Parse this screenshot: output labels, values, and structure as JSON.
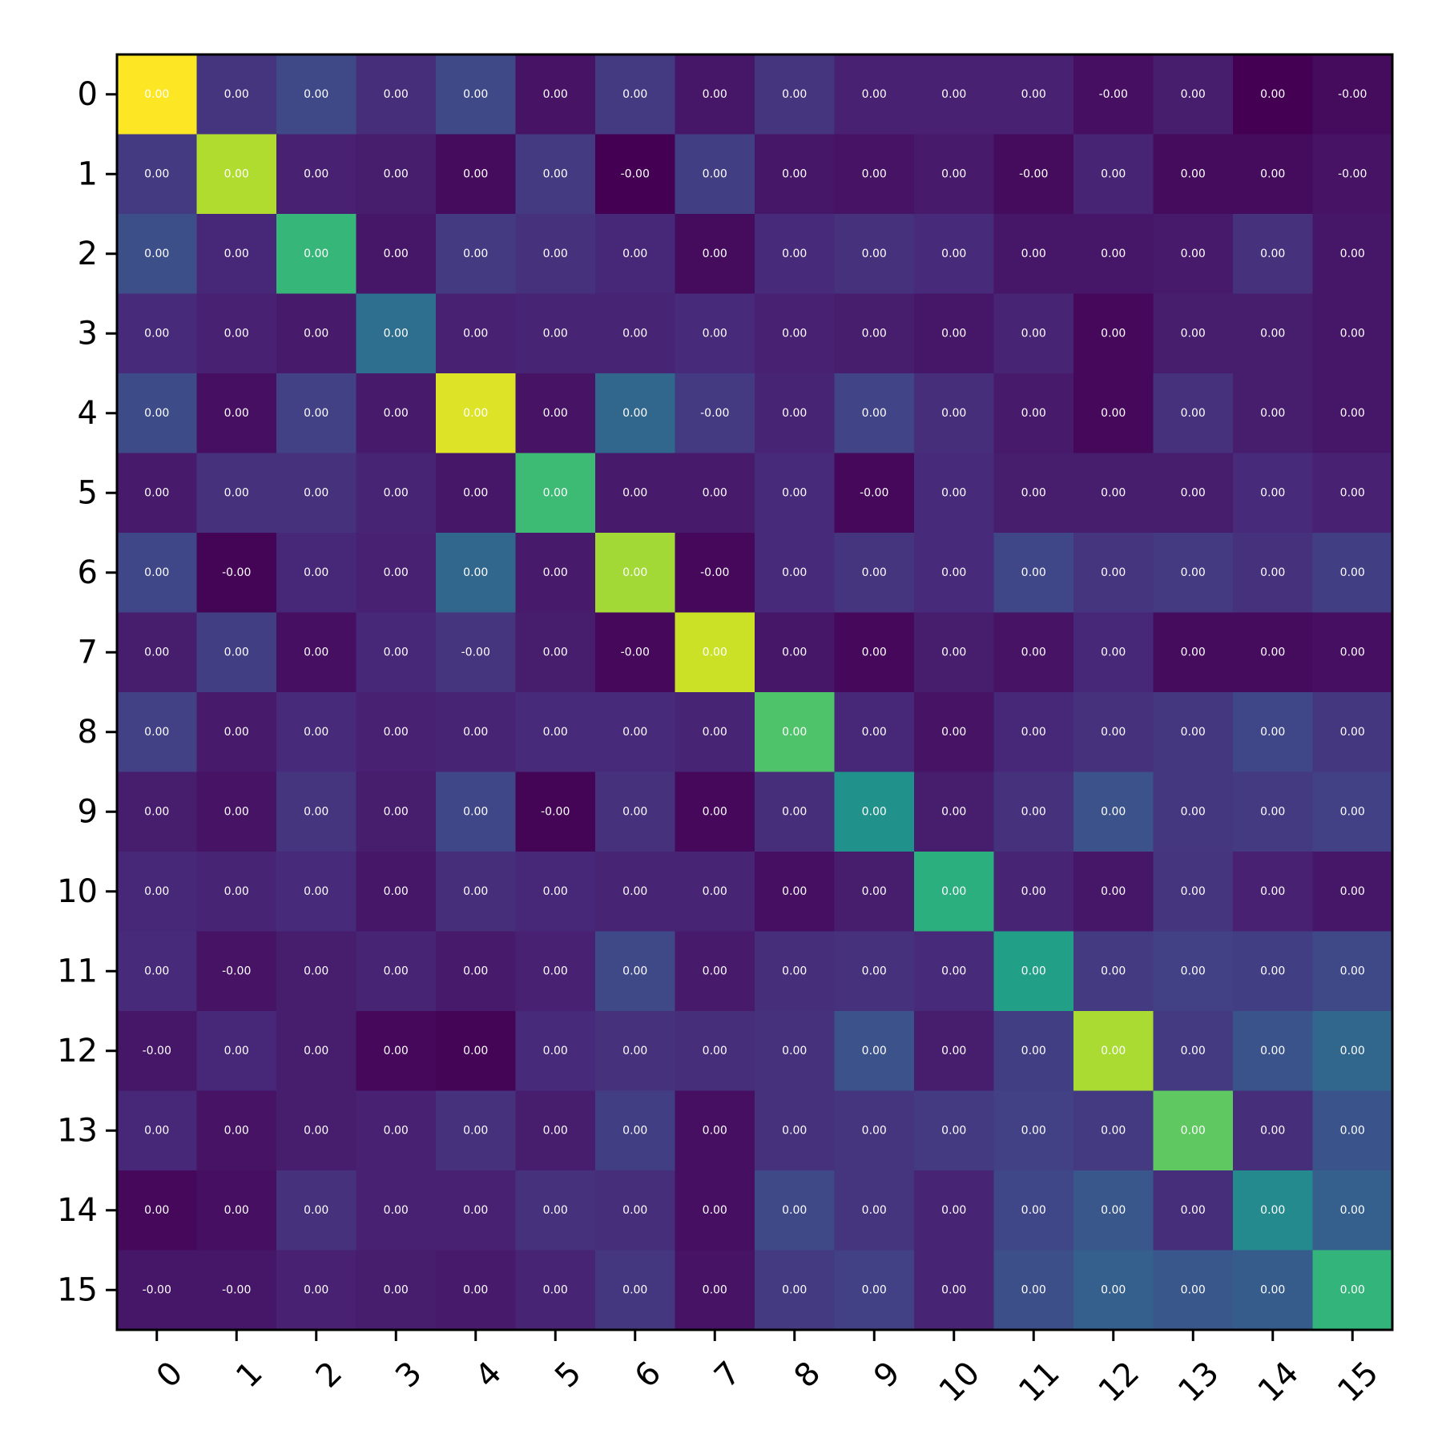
{
  "chart_data": {
    "type": "heatmap",
    "colormap": "viridis",
    "x_tick_labels": [
      "0",
      "1",
      "2",
      "3",
      "4",
      "5",
      "6",
      "7",
      "8",
      "9",
      "10",
      "11",
      "12",
      "13",
      "14",
      "15"
    ],
    "y_tick_labels": [
      "0",
      "1",
      "2",
      "3",
      "4",
      "5",
      "6",
      "7",
      "8",
      "9",
      "10",
      "11",
      "12",
      "13",
      "14",
      "15"
    ],
    "annotations": [
      [
        "0.00",
        "0.00",
        "0.00",
        "0.00",
        "0.00",
        "0.00",
        "0.00",
        "0.00",
        "0.00",
        "0.00",
        "0.00",
        "0.00",
        "-0.00",
        "0.00",
        "0.00",
        "-0.00"
      ],
      [
        "0.00",
        "0.00",
        "0.00",
        "0.00",
        "0.00",
        "0.00",
        "-0.00",
        "0.00",
        "0.00",
        "0.00",
        "0.00",
        "-0.00",
        "0.00",
        "0.00",
        "0.00",
        "-0.00"
      ],
      [
        "0.00",
        "0.00",
        "0.00",
        "0.00",
        "0.00",
        "0.00",
        "0.00",
        "0.00",
        "0.00",
        "0.00",
        "0.00",
        "0.00",
        "0.00",
        "0.00",
        "0.00",
        "0.00"
      ],
      [
        "0.00",
        "0.00",
        "0.00",
        "0.00",
        "0.00",
        "0.00",
        "0.00",
        "0.00",
        "0.00",
        "0.00",
        "0.00",
        "0.00",
        "0.00",
        "0.00",
        "0.00",
        "0.00"
      ],
      [
        "0.00",
        "0.00",
        "0.00",
        "0.00",
        "0.00",
        "0.00",
        "0.00",
        "-0.00",
        "0.00",
        "0.00",
        "0.00",
        "0.00",
        "0.00",
        "0.00",
        "0.00",
        "0.00"
      ],
      [
        "0.00",
        "0.00",
        "0.00",
        "0.00",
        "0.00",
        "0.00",
        "0.00",
        "0.00",
        "0.00",
        "-0.00",
        "0.00",
        "0.00",
        "0.00",
        "0.00",
        "0.00",
        "0.00"
      ],
      [
        "0.00",
        "-0.00",
        "0.00",
        "0.00",
        "0.00",
        "0.00",
        "0.00",
        "-0.00",
        "0.00",
        "0.00",
        "0.00",
        "0.00",
        "0.00",
        "0.00",
        "0.00",
        "0.00"
      ],
      [
        "0.00",
        "0.00",
        "0.00",
        "0.00",
        "-0.00",
        "0.00",
        "-0.00",
        "0.00",
        "0.00",
        "0.00",
        "0.00",
        "0.00",
        "0.00",
        "0.00",
        "0.00",
        "0.00"
      ],
      [
        "0.00",
        "0.00",
        "0.00",
        "0.00",
        "0.00",
        "0.00",
        "0.00",
        "0.00",
        "0.00",
        "0.00",
        "0.00",
        "0.00",
        "0.00",
        "0.00",
        "0.00",
        "0.00"
      ],
      [
        "0.00",
        "0.00",
        "0.00",
        "0.00",
        "0.00",
        "-0.00",
        "0.00",
        "0.00",
        "0.00",
        "0.00",
        "0.00",
        "0.00",
        "0.00",
        "0.00",
        "0.00",
        "0.00"
      ],
      [
        "0.00",
        "0.00",
        "0.00",
        "0.00",
        "0.00",
        "0.00",
        "0.00",
        "0.00",
        "0.00",
        "0.00",
        "0.00",
        "0.00",
        "0.00",
        "0.00",
        "0.00",
        "0.00"
      ],
      [
        "0.00",
        "-0.00",
        "0.00",
        "0.00",
        "0.00",
        "0.00",
        "0.00",
        "0.00",
        "0.00",
        "0.00",
        "0.00",
        "0.00",
        "0.00",
        "0.00",
        "0.00",
        "0.00"
      ],
      [
        "-0.00",
        "0.00",
        "0.00",
        "0.00",
        "0.00",
        "0.00",
        "0.00",
        "0.00",
        "0.00",
        "0.00",
        "0.00",
        "0.00",
        "0.00",
        "0.00",
        "0.00",
        "0.00"
      ],
      [
        "0.00",
        "0.00",
        "0.00",
        "0.00",
        "0.00",
        "0.00",
        "0.00",
        "0.00",
        "0.00",
        "0.00",
        "0.00",
        "0.00",
        "0.00",
        "0.00",
        "0.00",
        "0.00"
      ],
      [
        "0.00",
        "0.00",
        "0.00",
        "0.00",
        "0.00",
        "0.00",
        "0.00",
        "0.00",
        "0.00",
        "0.00",
        "0.00",
        "0.00",
        "0.00",
        "0.00",
        "0.00",
        "0.00"
      ],
      [
        "-0.00",
        "-0.00",
        "0.00",
        "0.00",
        "0.00",
        "0.00",
        "0.00",
        "0.00",
        "0.00",
        "0.00",
        "0.00",
        "0.00",
        "0.00",
        "0.00",
        "0.00",
        "0.00"
      ]
    ],
    "color_levels": [
      [
        1.0,
        0.15,
        0.22,
        0.13,
        0.22,
        0.05,
        0.17,
        0.06,
        0.15,
        0.09,
        0.09,
        0.09,
        0.04,
        0.08,
        0.0,
        0.03
      ],
      [
        0.17,
        0.88,
        0.09,
        0.08,
        0.03,
        0.17,
        0.0,
        0.18,
        0.06,
        0.05,
        0.07,
        0.03,
        0.1,
        0.03,
        0.03,
        0.05
      ],
      [
        0.24,
        0.11,
        0.66,
        0.06,
        0.17,
        0.14,
        0.11,
        0.03,
        0.12,
        0.14,
        0.12,
        0.06,
        0.06,
        0.07,
        0.14,
        0.06
      ],
      [
        0.12,
        0.09,
        0.07,
        0.36,
        0.09,
        0.1,
        0.1,
        0.12,
        0.09,
        0.08,
        0.06,
        0.1,
        0.02,
        0.08,
        0.08,
        0.06
      ],
      [
        0.23,
        0.04,
        0.19,
        0.07,
        0.95,
        0.05,
        0.33,
        0.17,
        0.1,
        0.2,
        0.13,
        0.07,
        0.02,
        0.14,
        0.08,
        0.06
      ],
      [
        0.07,
        0.14,
        0.14,
        0.1,
        0.06,
        0.68,
        0.07,
        0.07,
        0.12,
        0.02,
        0.12,
        0.08,
        0.08,
        0.08,
        0.12,
        0.09
      ],
      [
        0.21,
        0.01,
        0.11,
        0.09,
        0.33,
        0.07,
        0.86,
        0.02,
        0.12,
        0.15,
        0.12,
        0.21,
        0.15,
        0.17,
        0.14,
        0.18
      ],
      [
        0.08,
        0.18,
        0.04,
        0.11,
        0.15,
        0.08,
        0.02,
        0.92,
        0.06,
        0.02,
        0.08,
        0.05,
        0.11,
        0.03,
        0.03,
        0.04
      ],
      [
        0.19,
        0.07,
        0.12,
        0.09,
        0.1,
        0.12,
        0.12,
        0.1,
        0.72,
        0.11,
        0.05,
        0.11,
        0.14,
        0.16,
        0.21,
        0.16
      ],
      [
        0.08,
        0.05,
        0.15,
        0.08,
        0.21,
        0.01,
        0.14,
        0.02,
        0.13,
        0.5,
        0.08,
        0.14,
        0.25,
        0.16,
        0.17,
        0.19
      ],
      [
        0.11,
        0.1,
        0.12,
        0.06,
        0.13,
        0.11,
        0.1,
        0.1,
        0.04,
        0.08,
        0.63,
        0.1,
        0.06,
        0.15,
        0.09,
        0.06
      ],
      [
        0.12,
        0.05,
        0.08,
        0.1,
        0.07,
        0.09,
        0.22,
        0.07,
        0.13,
        0.14,
        0.12,
        0.56,
        0.17,
        0.19,
        0.18,
        0.22
      ],
      [
        0.06,
        0.11,
        0.08,
        0.02,
        0.01,
        0.12,
        0.14,
        0.13,
        0.14,
        0.25,
        0.08,
        0.18,
        0.87,
        0.17,
        0.26,
        0.33
      ],
      [
        0.11,
        0.05,
        0.08,
        0.09,
        0.14,
        0.08,
        0.18,
        0.04,
        0.14,
        0.15,
        0.17,
        0.19,
        0.17,
        0.75,
        0.13,
        0.26
      ],
      [
        0.02,
        0.04,
        0.14,
        0.09,
        0.09,
        0.14,
        0.13,
        0.04,
        0.22,
        0.15,
        0.1,
        0.21,
        0.27,
        0.13,
        0.47,
        0.3
      ],
      [
        0.06,
        0.06,
        0.09,
        0.08,
        0.07,
        0.1,
        0.16,
        0.05,
        0.17,
        0.19,
        0.1,
        0.24,
        0.3,
        0.27,
        0.29,
        0.65
      ]
    ]
  }
}
